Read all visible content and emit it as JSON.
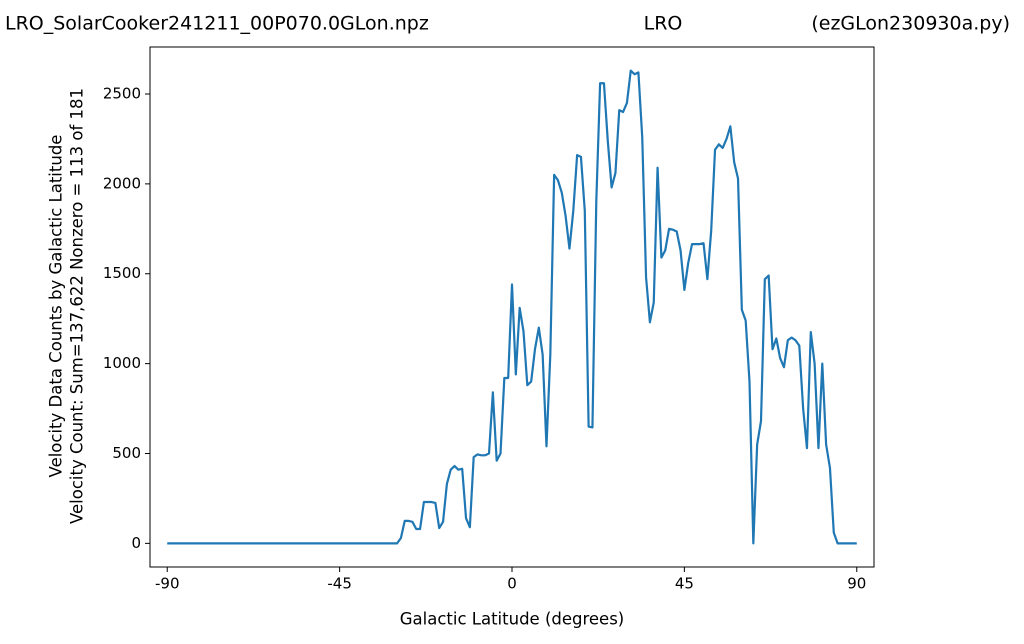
{
  "chart_data": {
    "type": "line",
    "title_left": "LRO_SolarCooker241211_00P070.0GLon.npz",
    "title_center": "LRO",
    "title_right": "(ezGLon230930a.py)",
    "ylabel": [
      "Velocity Data Counts by Galactic Latitude",
      "Velocity Count: Sum=137,622 Nonzero = 113 of 181"
    ],
    "xlabel": "Galactic Latitude (degrees)",
    "x": [
      -90,
      -89,
      -88,
      -87,
      -86,
      -85,
      -84,
      -83,
      -82,
      -81,
      -80,
      -79,
      -78,
      -77,
      -76,
      -75,
      -74,
      -73,
      -72,
      -71,
      -70,
      -69,
      -68,
      -67,
      -66,
      -65,
      -64,
      -63,
      -62,
      -61,
      -60,
      -59,
      -58,
      -57,
      -56,
      -55,
      -54,
      -53,
      -52,
      -51,
      -50,
      -49,
      -48,
      -47,
      -46,
      -45,
      -44,
      -43,
      -42,
      -41,
      -40,
      -39,
      -38,
      -37,
      -36,
      -35,
      -34,
      -33,
      -32,
      -31,
      -30,
      -29,
      -28,
      -27,
      -26,
      -25,
      -24,
      -23,
      -22,
      -21,
      -20,
      -19,
      -18,
      -17,
      -16,
      -15,
      -14,
      -13,
      -12,
      -11,
      -10,
      -9,
      -8,
      -7,
      -6,
      -5,
      -4,
      -3,
      -2,
      -1,
      0,
      1,
      2,
      3,
      4,
      5,
      6,
      7,
      8,
      9,
      10,
      11,
      12,
      13,
      14,
      15,
      16,
      17,
      18,
      19,
      20,
      21,
      22,
      23,
      24,
      25,
      26,
      27,
      28,
      29,
      30,
      31,
      32,
      33,
      34,
      35,
      36,
      37,
      38,
      39,
      40,
      41,
      42,
      43,
      44,
      45,
      46,
      47,
      48,
      49,
      50,
      51,
      52,
      53,
      54,
      55,
      56,
      57,
      58,
      59,
      60,
      61,
      62,
      63,
      64,
      65,
      66,
      67,
      68,
      69,
      70,
      71,
      72,
      73,
      74,
      75,
      76,
      77,
      78,
      79,
      80,
      81,
      82,
      83,
      84,
      85,
      86,
      87,
      88,
      89,
      90
    ],
    "series": [
      {
        "color": "#1f77b4",
        "values": [
          0,
          0,
          0,
          0,
          0,
          0,
          0,
          0,
          0,
          0,
          0,
          0,
          0,
          0,
          0,
          0,
          0,
          0,
          0,
          0,
          0,
          0,
          0,
          0,
          0,
          0,
          0,
          0,
          0,
          0,
          0,
          0,
          0,
          0,
          0,
          0,
          0,
          0,
          0,
          0,
          0,
          0,
          0,
          0,
          0,
          0,
          0,
          0,
          0,
          0,
          0,
          0,
          0,
          0,
          0,
          0,
          0,
          0,
          0,
          0,
          0,
          30,
          125,
          125,
          120,
          80,
          80,
          230,
          230,
          230,
          225,
          85,
          120,
          330,
          410,
          430,
          410,
          415,
          140,
          90,
          480,
          495,
          490,
          490,
          500,
          840,
          460,
          500,
          920,
          920,
          1440,
          940,
          1310,
          1180,
          880,
          900,
          1080,
          1200,
          1050,
          540,
          1050,
          2050,
          2020,
          1950,
          1820,
          1640,
          1850,
          2160,
          2150,
          1850,
          650,
          645,
          1900,
          2560,
          2560,
          2240,
          1980,
          2060,
          2410,
          2400,
          2450,
          2630,
          2610,
          2620,
          2260,
          1480,
          1230,
          1340,
          2090,
          1590,
          1630,
          1750,
          1745,
          1735,
          1630,
          1410,
          1560,
          1665,
          1665,
          1665,
          1670,
          1470,
          1740,
          2190,
          2220,
          2200,
          2250,
          2320,
          2120,
          2030,
          1300,
          1240,
          900,
          0,
          550,
          680,
          1470,
          1490,
          1080,
          1140,
          1030,
          980,
          1130,
          1145,
          1130,
          1100,
          750,
          530,
          1175,
          1000,
          530,
          1000,
          550,
          420,
          60,
          0,
          0,
          0,
          0,
          0,
          0
        ]
      }
    ],
    "xlim": [
      -94.5,
      94.5
    ],
    "xticks": [
      -90,
      -45,
      0,
      45,
      90
    ],
    "ylim": [
      -131.5,
      2761.5
    ],
    "yticks": [
      0,
      500,
      1000,
      1500,
      2000,
      2500
    ]
  }
}
